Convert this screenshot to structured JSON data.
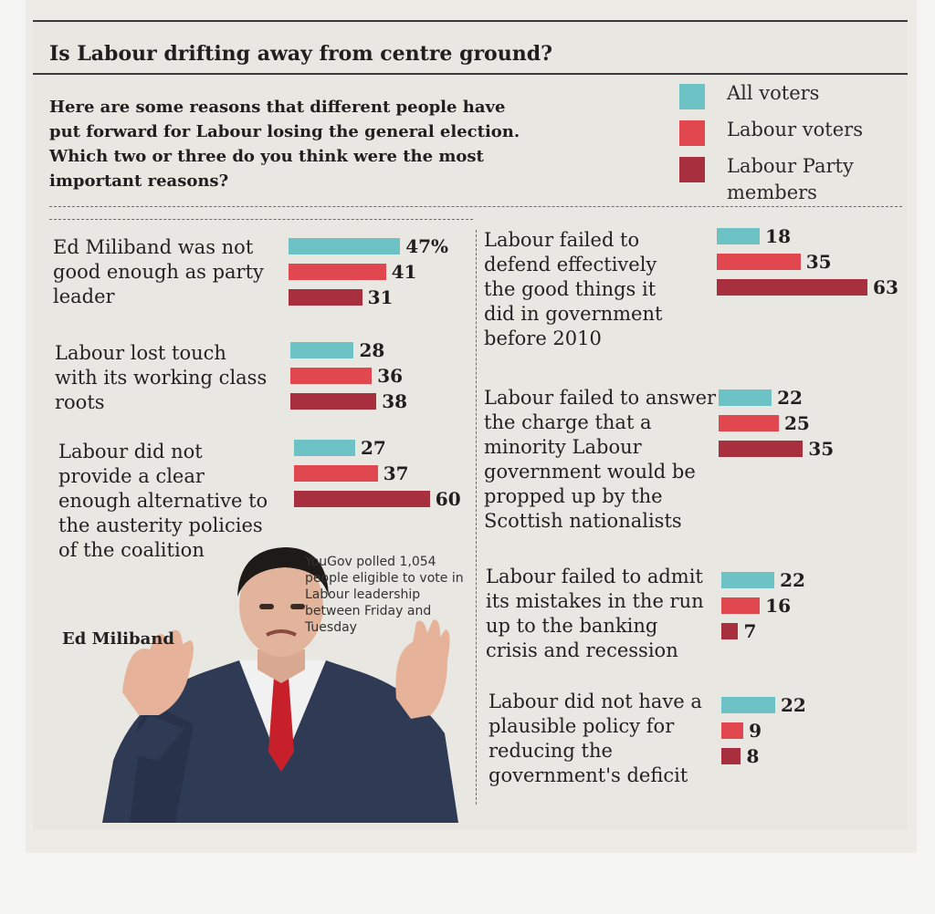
{
  "title": "Is Labour drifting away from centre ground?",
  "intro": "Here are some reasons that different people have put forward for Labour losing the general election. Which two or three do you think were the most important reasons?",
  "caption": "Ed Miliband",
  "source_note": "YouGov polled 1,054 people eligible to vote in Labour leadership between Friday and Tuesday",
  "colors": {
    "all_voters": "#6cc2c5",
    "labour_voters": "#e0474f",
    "labour_members": "#a8303e"
  },
  "chart_data": {
    "type": "bar",
    "orientation": "horizontal",
    "title": "Is Labour drifting away from centre ground?",
    "legend": {
      "placement": "top-right",
      "entries": [
        "All voters",
        "Labour voters",
        "Labour Party members"
      ]
    },
    "series_names": [
      "All voters",
      "Labour voters",
      "Labour Party members"
    ],
    "xlim": [
      0,
      65
    ],
    "grid": false,
    "categories": [
      {
        "label": "Ed Miliband was not good enough as party leader",
        "values": [
          47,
          41,
          31
        ],
        "value_labels": [
          "47%",
          "41",
          "31"
        ]
      },
      {
        "label": "Labour lost touch with its working class roots",
        "values": [
          28,
          36,
          38
        ],
        "value_labels": [
          "28",
          "36",
          "38"
        ]
      },
      {
        "label": "Labour did not provide a clear enough alternative to the austerity policies of the coalition",
        "values": [
          27,
          37,
          60
        ],
        "value_labels": [
          "27",
          "37",
          "60"
        ]
      },
      {
        "label": "Labour failed to defend effectively the good things it did in government before 2010",
        "values": [
          18,
          35,
          63
        ],
        "value_labels": [
          "18",
          "35",
          "63"
        ]
      },
      {
        "label": "Labour failed to answer the charge that a minority Labour government would be propped up by the Scottish nationalists",
        "values": [
          22,
          25,
          35
        ],
        "value_labels": [
          "22",
          "25",
          "35"
        ]
      },
      {
        "label": "Labour failed to admit its mistakes in the run up to the banking crisis and recession",
        "values": [
          22,
          16,
          7
        ],
        "value_labels": [
          "22",
          "16",
          "7"
        ]
      },
      {
        "label": "Labour did not have a plausible policy for reducing the government's deficit",
        "values": [
          22,
          9,
          8
        ],
        "value_labels": [
          "22",
          "9",
          "8"
        ]
      }
    ]
  }
}
